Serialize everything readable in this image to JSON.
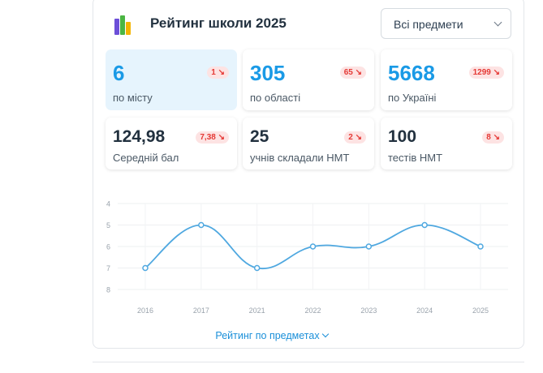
{
  "header": {
    "title": "Рейтинг школи 2025",
    "logo_icon": "bar-chart-logo-icon"
  },
  "filter": {
    "selected": "Всі предмети"
  },
  "stats": [
    {
      "value": "6",
      "label": "по місту",
      "change": "1",
      "highlight": true
    },
    {
      "value": "305",
      "label": "по області",
      "change": "65"
    },
    {
      "value": "5668",
      "label": "по Україні",
      "change": "1299"
    },
    {
      "value": "124,98",
      "label": "Середній бал",
      "change": "7,38"
    },
    {
      "value": "25",
      "label": "учнів складали НМТ",
      "change": "2"
    },
    {
      "value": "100",
      "label": "тестів НМТ",
      "change": "8"
    }
  ],
  "change_icon": "trend-down-icon",
  "colors": {
    "accent": "#1a9ae6",
    "badge_bg": "#fde3e3",
    "badge_text": "#e53935",
    "line": "#4fa8e0"
  },
  "chart_data": {
    "type": "line",
    "title": "",
    "xlabel": "",
    "ylabel": "",
    "x": [
      "2016",
      "2017",
      "2021",
      "2022",
      "2023",
      "2024",
      "2025"
    ],
    "series": [
      {
        "values": [
          7,
          5,
          7,
          6,
          6,
          5,
          6
        ]
      }
    ],
    "ylim": [
      4,
      8
    ],
    "y_inverted": true,
    "yticks": [
      "4",
      "5",
      "6",
      "7",
      "8"
    ],
    "grid": true
  },
  "footer": {
    "link_label": "Рейтинг по предметах"
  }
}
